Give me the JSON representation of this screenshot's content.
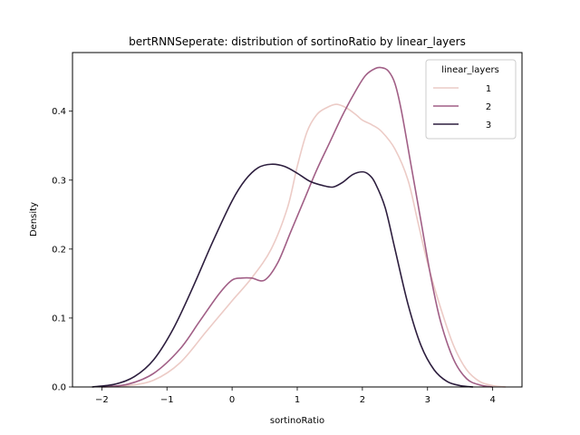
{
  "chart_data": {
    "type": "line",
    "title": "bertRNNSeperate: distribution of sortinoRatio by linear_layers",
    "xlabel": "sortinoRatio",
    "ylabel": "Density",
    "xlim": [
      -2.45,
      4.45
    ],
    "ylim": [
      0,
      0.485
    ],
    "xticks": [
      -2,
      -1,
      0,
      1,
      2,
      3,
      4
    ],
    "xtick_labels": [
      "−2",
      "−1",
      "0",
      "1",
      "2",
      "3",
      "4"
    ],
    "yticks": [
      0.0,
      0.1,
      0.2,
      0.3,
      0.4
    ],
    "ytick_labels": [
      "0.0",
      "0.1",
      "0.2",
      "0.3",
      "0.4"
    ],
    "grid": false,
    "legend": {
      "title": "linear_layers",
      "placement": "top-right",
      "entries": [
        "1",
        "2",
        "3"
      ]
    },
    "series": [
      {
        "name": "1",
        "color": "#eccbc6",
        "x": [
          -1.95,
          -1.6,
          -1.2,
          -0.8,
          -0.4,
          0.0,
          0.3,
          0.6,
          0.85,
          1.0,
          1.15,
          1.3,
          1.45,
          1.6,
          1.75,
          1.9,
          2.0,
          2.15,
          2.3,
          2.5,
          2.7,
          2.85,
          3.0,
          3.2,
          3.4,
          3.6,
          3.8,
          4.0,
          4.2
        ],
        "y": [
          0.0,
          0.002,
          0.01,
          0.035,
          0.08,
          0.125,
          0.158,
          0.2,
          0.26,
          0.32,
          0.37,
          0.395,
          0.405,
          0.41,
          0.405,
          0.395,
          0.387,
          0.38,
          0.37,
          0.345,
          0.3,
          0.24,
          0.18,
          0.115,
          0.06,
          0.025,
          0.008,
          0.002,
          0.0
        ]
      },
      {
        "name": "2",
        "color": "#a15f86",
        "x": [
          -2.0,
          -1.6,
          -1.2,
          -0.8,
          -0.5,
          -0.2,
          0.0,
          0.15,
          0.3,
          0.5,
          0.7,
          0.9,
          1.1,
          1.3,
          1.5,
          1.7,
          1.9,
          2.05,
          2.2,
          2.3,
          2.4,
          2.5,
          2.6,
          2.75,
          2.9,
          3.05,
          3.2,
          3.4,
          3.6,
          3.8,
          4.0
        ],
        "y": [
          0.0,
          0.004,
          0.02,
          0.055,
          0.095,
          0.135,
          0.155,
          0.158,
          0.158,
          0.155,
          0.18,
          0.225,
          0.27,
          0.315,
          0.355,
          0.395,
          0.43,
          0.452,
          0.462,
          0.463,
          0.458,
          0.44,
          0.4,
          0.32,
          0.24,
          0.16,
          0.095,
          0.04,
          0.012,
          0.003,
          0.0
        ]
      },
      {
        "name": "3",
        "color": "#2d1e3e",
        "x": [
          -2.15,
          -1.8,
          -1.5,
          -1.2,
          -0.9,
          -0.6,
          -0.3,
          0.0,
          0.2,
          0.4,
          0.6,
          0.8,
          1.0,
          1.2,
          1.4,
          1.55,
          1.7,
          1.85,
          2.0,
          2.1,
          2.2,
          2.35,
          2.5,
          2.7,
          2.9,
          3.1,
          3.3,
          3.5,
          3.7
        ],
        "y": [
          0.0,
          0.004,
          0.015,
          0.04,
          0.085,
          0.145,
          0.21,
          0.27,
          0.3,
          0.318,
          0.323,
          0.32,
          0.31,
          0.298,
          0.292,
          0.29,
          0.297,
          0.308,
          0.312,
          0.308,
          0.295,
          0.26,
          0.2,
          0.12,
          0.06,
          0.025,
          0.008,
          0.002,
          0.0
        ]
      }
    ]
  }
}
